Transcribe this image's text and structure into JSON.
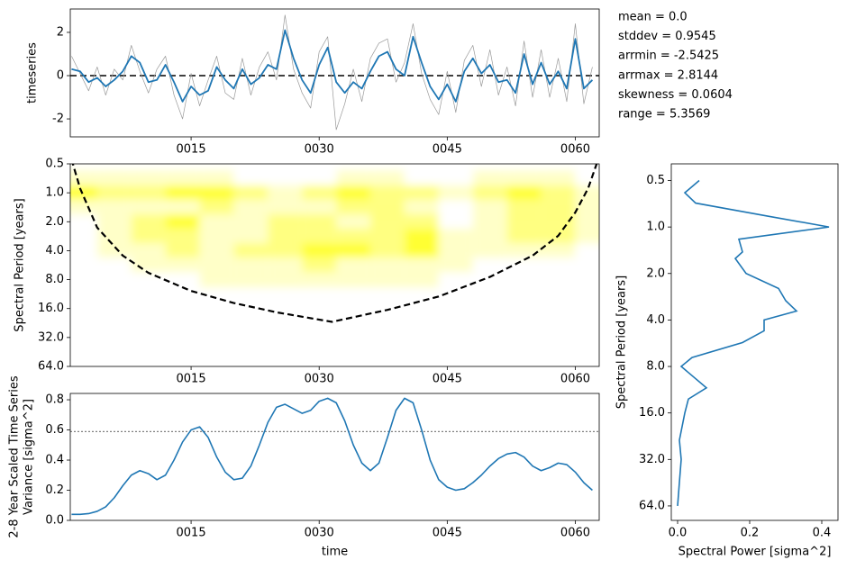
{
  "chart_data": [
    {
      "type": "line",
      "ylabel": "timeseries",
      "x": [
        1,
        2,
        3,
        4,
        5,
        6,
        7,
        8,
        9,
        10,
        11,
        12,
        13,
        14,
        15,
        16,
        17,
        18,
        19,
        20,
        21,
        22,
        23,
        24,
        25,
        26,
        27,
        28,
        29,
        30,
        31,
        32,
        33,
        34,
        35,
        36,
        37,
        38,
        39,
        40,
        41,
        42,
        43,
        44,
        45,
        46,
        47,
        48,
        49,
        50,
        51,
        52,
        53,
        54,
        55,
        56,
        57,
        58,
        59,
        60,
        61,
        62
      ],
      "series": [
        {
          "color": "#999999",
          "linewidth": 0.7,
          "values": [
            0.9,
            0.1,
            -0.7,
            0.4,
            -0.9,
            0.3,
            -0.2,
            1.4,
            0.2,
            -0.8,
            0.3,
            0.9,
            -0.9,
            -2.0,
            0.1,
            -1.4,
            -0.2,
            0.9,
            -0.8,
            -1.1,
            0.8,
            -0.9,
            0.4,
            1.1,
            -0.2,
            2.8,
            0.3,
            -0.8,
            -1.5,
            1.1,
            1.8,
            -2.5,
            -1.3,
            0.3,
            -1.2,
            0.8,
            1.5,
            1.7,
            -0.3,
            0.6,
            2.4,
            0.1,
            -1.1,
            -1.8,
            0.2,
            -1.7,
            0.7,
            1.4,
            -0.5,
            1.2,
            -0.9,
            0.4,
            -1.4,
            1.6,
            -1.0,
            1.2,
            -1.0,
            0.8,
            -1.2,
            2.4,
            -1.3,
            0.4
          ]
        },
        {
          "color": "#1f77b4",
          "linewidth": 1.8,
          "values": [
            0.3,
            0.2,
            -0.3,
            -0.1,
            -0.5,
            -0.2,
            0.2,
            0.9,
            0.6,
            -0.3,
            -0.2,
            0.5,
            -0.3,
            -1.2,
            -0.5,
            -0.9,
            -0.7,
            0.4,
            -0.2,
            -0.6,
            0.3,
            -0.4,
            -0.1,
            0.5,
            0.3,
            2.1,
            0.8,
            -0.2,
            -0.8,
            0.5,
            1.3,
            -0.3,
            -0.8,
            -0.3,
            -0.6,
            0.2,
            0.9,
            1.1,
            0.3,
            0.0,
            1.8,
            0.6,
            -0.5,
            -1.1,
            -0.4,
            -1.2,
            0.2,
            0.8,
            0.1,
            0.5,
            -0.3,
            -0.2,
            -0.8,
            1.0,
            -0.4,
            0.6,
            -0.4,
            0.2,
            -0.6,
            1.7,
            -0.6,
            -0.2
          ]
        }
      ],
      "reference_line": {
        "value": 0,
        "color": "#000000",
        "style": "dashed"
      },
      "xlim": [
        0.85,
        62.8
      ],
      "xticks": [
        {
          "value": 15,
          "label": "0015"
        },
        {
          "value": 30,
          "label": "0030"
        },
        {
          "value": 45,
          "label": "0045"
        },
        {
          "value": 60,
          "label": "0060"
        }
      ],
      "ylim": [
        -2.83,
        3.08
      ],
      "yticks": [
        -2,
        0,
        2
      ],
      "annotations": [
        "mean = 0.0",
        "stddev = 0.9545",
        "arrmin = -2.5425",
        "arrmax = 2.8144",
        "skewness = 0.0604",
        "range = 5.3569"
      ]
    },
    {
      "type": "contour",
      "ylabel": "Spectral Period [years]",
      "x": [
        2,
        6,
        10,
        14,
        18,
        22,
        26,
        30,
        34,
        38,
        42,
        46,
        50,
        54,
        58,
        62
      ],
      "periods": [
        0.7,
        1,
        1.4,
        2,
        2.8,
        4,
        5.6,
        8
      ],
      "power": [
        [
          1,
          1,
          1,
          1,
          1,
          0,
          0,
          0,
          1,
          1,
          0,
          0,
          1,
          1,
          1,
          0
        ],
        [
          3,
          2,
          2,
          3,
          3,
          2,
          1,
          2,
          3,
          2,
          2,
          1,
          2,
          3,
          2,
          1
        ],
        [
          1,
          1,
          1,
          1,
          2,
          1,
          1,
          1,
          2,
          2,
          1,
          0,
          1,
          2,
          2,
          1
        ],
        [
          0,
          1,
          2,
          3,
          1,
          1,
          2,
          2,
          1,
          2,
          2,
          0,
          1,
          2,
          2,
          1
        ],
        [
          0,
          1,
          2,
          2,
          1,
          1,
          2,
          2,
          2,
          2,
          3,
          1,
          1,
          2,
          2,
          1
        ],
        [
          0,
          1,
          1,
          2,
          1,
          2,
          2,
          3,
          3,
          2,
          3,
          1,
          1,
          1,
          1,
          0
        ],
        [
          0,
          0,
          1,
          1,
          1,
          1,
          1,
          2,
          1,
          1,
          1,
          1,
          0,
          0,
          0,
          0
        ],
        [
          0,
          0,
          0,
          0,
          1,
          1,
          1,
          1,
          1,
          1,
          1,
          0,
          0,
          0,
          0,
          0
        ]
      ],
      "level_colors": [
        "#ffffff",
        "#ffffc8",
        "#ffff80",
        "#ffff30"
      ],
      "coi": {
        "x": [
          1,
          2,
          4,
          7,
          10,
          15,
          20,
          25,
          31.5,
          38,
          44,
          50,
          55,
          58,
          60,
          61.5,
          62.5
        ],
        "values": [
          0.45,
          0.9,
          2.3,
          4.5,
          6.8,
          10.5,
          14,
          17.5,
          22,
          16.5,
          12,
          7.5,
          4.5,
          2.8,
          1.6,
          0.9,
          0.5
        ],
        "color": "#000000",
        "style": "dashed"
      },
      "xlim": [
        0.85,
        62.8
      ],
      "xticks": [
        {
          "value": 15,
          "label": "0015"
        },
        {
          "value": 30,
          "label": "0030"
        },
        {
          "value": 45,
          "label": "0045"
        },
        {
          "value": 60,
          "label": "0060"
        }
      ],
      "yscale": "log2",
      "yinvert": true,
      "ylim": [
        0.5,
        64
      ],
      "yticks": [
        0.5,
        {
          "value": 1,
          "label": "1.0"
        },
        {
          "value": 2,
          "label": "2.0"
        },
        {
          "value": 4,
          "label": "4.0"
        },
        {
          "value": 8,
          "label": "8.0"
        },
        {
          "value": 16,
          "label": "16.0"
        },
        {
          "value": 32,
          "label": "32.0"
        },
        {
          "value": 64,
          "label": "64.0"
        }
      ]
    },
    {
      "type": "line",
      "ylabel": [
        "2-8 Year Scaled Time Series",
        "Variance [sigma^2]"
      ],
      "xlabel": "time",
      "x": [
        1,
        2,
        3,
        4,
        5,
        6,
        7,
        8,
        9,
        10,
        11,
        12,
        13,
        14,
        15,
        16,
        17,
        18,
        19,
        20,
        21,
        22,
        23,
        24,
        25,
        26,
        27,
        28,
        29,
        30,
        31,
        32,
        33,
        34,
        35,
        36,
        37,
        38,
        39,
        40,
        41,
        42,
        43,
        44,
        45,
        46,
        47,
        48,
        49,
        50,
        51,
        52,
        53,
        54,
        55,
        56,
        57,
        58,
        59,
        60,
        61,
        62
      ],
      "series": [
        {
          "color": "#1f77b4",
          "linewidth": 1.6,
          "values": [
            0.04,
            0.04,
            0.045,
            0.06,
            0.09,
            0.15,
            0.23,
            0.3,
            0.33,
            0.31,
            0.27,
            0.3,
            0.4,
            0.52,
            0.6,
            0.62,
            0.55,
            0.42,
            0.32,
            0.27,
            0.28,
            0.36,
            0.5,
            0.65,
            0.75,
            0.77,
            0.74,
            0.71,
            0.73,
            0.79,
            0.81,
            0.78,
            0.66,
            0.5,
            0.38,
            0.33,
            0.38,
            0.55,
            0.73,
            0.81,
            0.78,
            0.6,
            0.4,
            0.27,
            0.22,
            0.2,
            0.21,
            0.25,
            0.3,
            0.36,
            0.41,
            0.44,
            0.45,
            0.42,
            0.36,
            0.33,
            0.35,
            0.38,
            0.37,
            0.32,
            0.25,
            0.2
          ]
        }
      ],
      "reference_line": {
        "value": 0.59,
        "color": "#000000",
        "style": "dotted"
      },
      "xlim": [
        0.85,
        62.8
      ],
      "xticks": [
        {
          "value": 15,
          "label": "0015"
        },
        {
          "value": 30,
          "label": "0030"
        },
        {
          "value": 45,
          "label": "0045"
        },
        {
          "value": 60,
          "label": "0060"
        }
      ],
      "ylim": [
        0,
        0.842
      ],
      "yticks": [
        {
          "value": 0,
          "label": "0.0"
        },
        0.2,
        0.4,
        0.6,
        0.8
      ]
    },
    {
      "type": "spectrum",
      "ylabel": "Spectral Period [years]",
      "xlabel": "Spectral Power [sigma^2]",
      "periods": [
        0.5,
        0.6,
        0.7,
        0.85,
        1.0,
        1.2,
        1.45,
        1.6,
        2.0,
        2.5,
        3.0,
        3.5,
        4.0,
        4.7,
        5.6,
        7,
        8,
        11,
        13,
        16,
        24,
        32,
        45,
        64
      ],
      "values": [
        0.06,
        0.02,
        0.05,
        0.25,
        0.42,
        0.17,
        0.18,
        0.16,
        0.19,
        0.28,
        0.3,
        0.33,
        0.24,
        0.24,
        0.18,
        0.04,
        0.01,
        0.08,
        0.03,
        0.02,
        0.005,
        0.01,
        0.005,
        0.0
      ],
      "color": "#1f77b4",
      "xlim": [
        -0.0175,
        0.445
      ],
      "xticks": [
        {
          "value": 0,
          "label": "0.0"
        },
        0.2,
        0.4
      ],
      "yscale": "log2",
      "yinvert": true,
      "ylim": [
        0.39,
        79.4
      ],
      "yticks": [
        0.5,
        {
          "value": 1,
          "label": "1.0"
        },
        {
          "value": 2,
          "label": "2.0"
        },
        {
          "value": 4,
          "label": "4.0"
        },
        {
          "value": 8,
          "label": "8.0"
        },
        {
          "value": 16,
          "label": "16.0"
        },
        {
          "value": 32,
          "label": "32.0"
        },
        {
          "value": 64,
          "label": "64.0"
        }
      ]
    }
  ]
}
